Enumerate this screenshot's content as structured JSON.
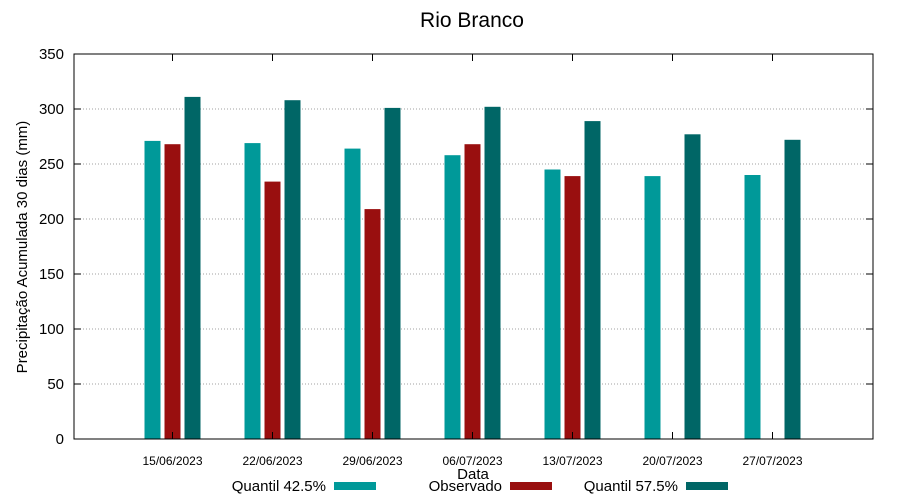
{
  "chart_data": {
    "type": "bar",
    "title": "Rio Branco",
    "xlabel": "Data",
    "ylabel": "Precipitação Acumulada 30 dias (mm)",
    "ylim": [
      0,
      350
    ],
    "yticks": [
      0,
      50,
      100,
      150,
      200,
      250,
      300,
      350
    ],
    "grid": true,
    "legend_position": "bottom",
    "categories": [
      "15/06/2023",
      "22/06/2023",
      "29/06/2023",
      "06/07/2023",
      "13/07/2023",
      "20/07/2023",
      "27/07/2023"
    ],
    "series": [
      {
        "name": "Quantil 42.5%",
        "color": "#009999",
        "values": [
          271,
          269,
          264,
          258,
          245,
          239,
          240
        ]
      },
      {
        "name": "Observado",
        "color": "#990f0f",
        "values": [
          268,
          234,
          209,
          268,
          239,
          null,
          null
        ]
      },
      {
        "name": "Quantil 57.5%",
        "color": "#006666",
        "values": [
          311,
          308,
          301,
          302,
          289,
          277,
          272
        ]
      }
    ]
  }
}
